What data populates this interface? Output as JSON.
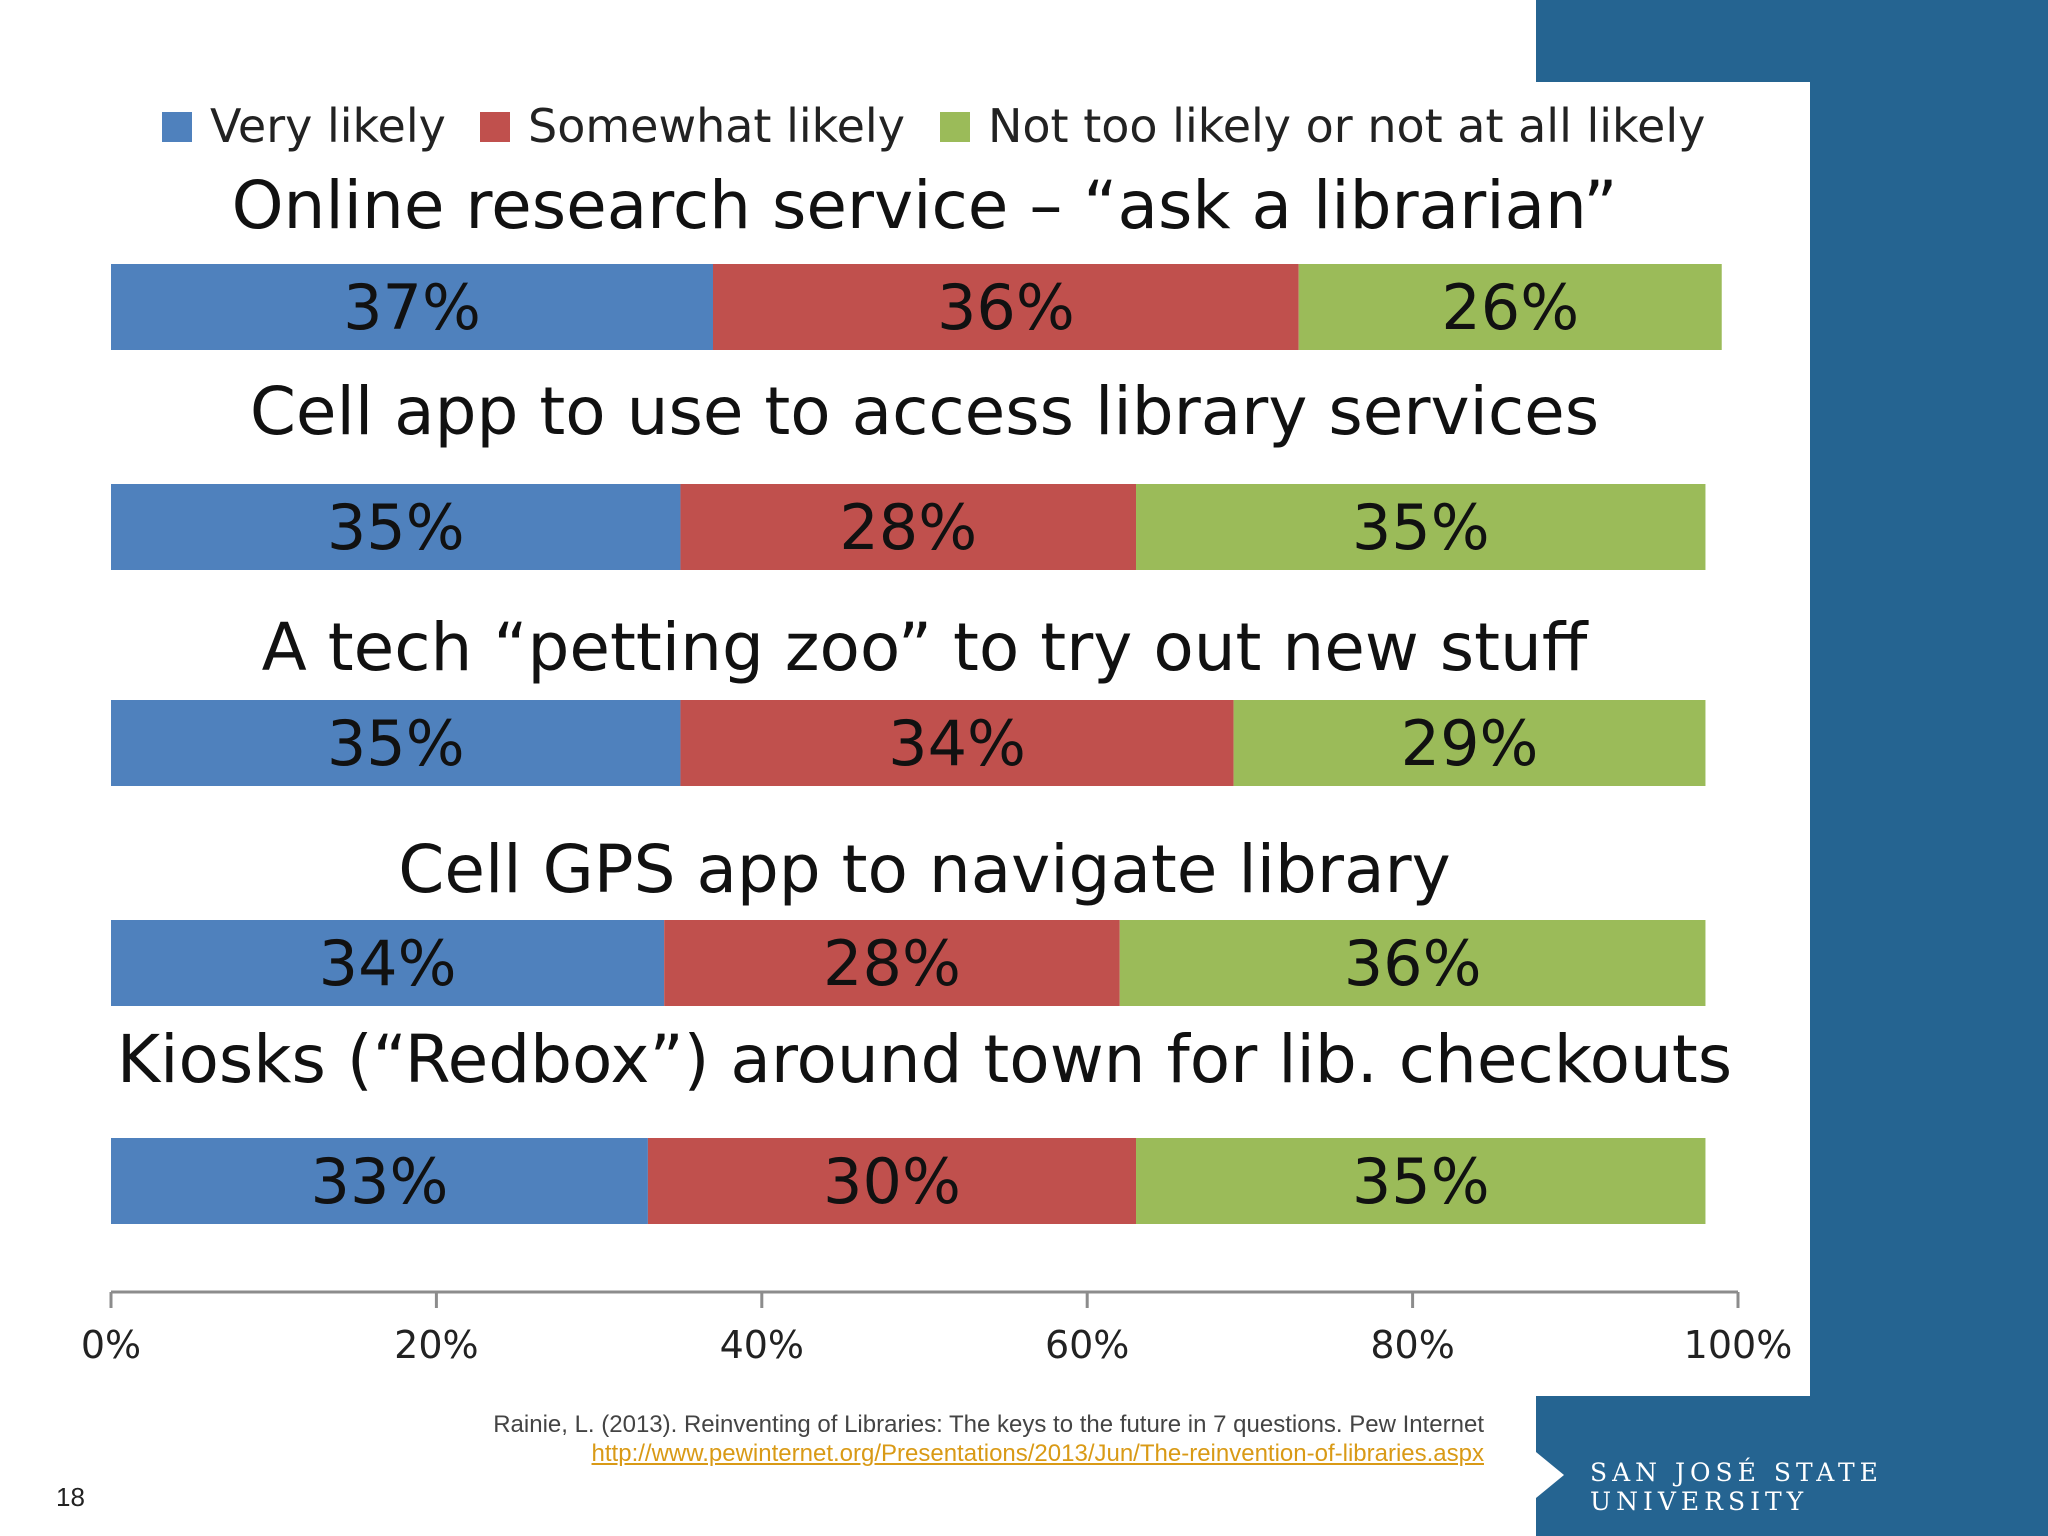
{
  "colors": {
    "very_likely": "#4f81bd",
    "somewhat_likely": "#c0504d",
    "not_likely": "#9bbb59",
    "side_band": "#256491",
    "link": "#d99a16"
  },
  "chart_data": {
    "type": "bar",
    "orientation": "horizontal",
    "stacked": true,
    "categories": [
      "Online research service – “ask a librarian”",
      "Cell app to use to access library services",
      "A tech “petting zoo” to try out new stuff",
      "Cell GPS app to navigate library",
      "Kiosks (“Redbox”) around town for lib. checkouts"
    ],
    "series": [
      {
        "name": "Very likely",
        "values": [
          37,
          35,
          35,
          34,
          33
        ],
        "labels": [
          "37%",
          "35%",
          "35%",
          "34%",
          "33%"
        ]
      },
      {
        "name": "Somewhat likely",
        "values": [
          36,
          28,
          34,
          28,
          30
        ],
        "labels": [
          "36%",
          "28%",
          "34%",
          "28%",
          "30%"
        ]
      },
      {
        "name": "Not too likely or not at all likely",
        "values": [
          26,
          35,
          29,
          36,
          35
        ],
        "labels": [
          "26%",
          "35%",
          "29%",
          "36%",
          "35%"
        ]
      }
    ],
    "xlim": [
      0,
      100
    ],
    "xticks": [
      0,
      20,
      40,
      60,
      80,
      100
    ],
    "xtick_labels": [
      "0%",
      "20%",
      "40%",
      "60%",
      "80%",
      "100%"
    ],
    "legend_position": "top",
    "grid": false
  },
  "citation": {
    "text": "Rainie, L. (2013). Reinventing of Libraries: The keys to the future in 7 questions. Pew Internet",
    "link": " http://www.pewinternet.org/Presentations/2013/Jun/The-reinvention-of-libraries.aspx"
  },
  "page_number": "18",
  "university": "SAN JOSÉ STATE UNIVERSITY"
}
